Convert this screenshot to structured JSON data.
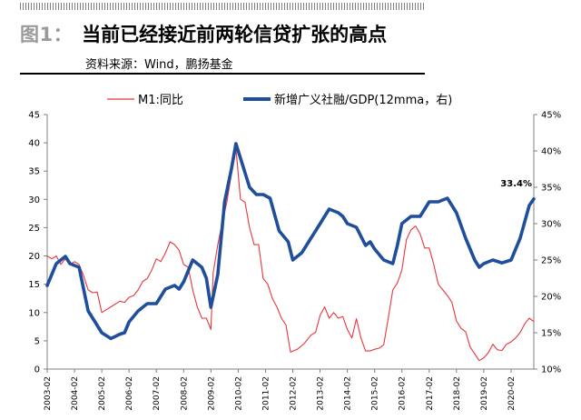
{
  "header": {
    "figure_number": "图1：",
    "title": "当前已经接近前两轮信贷扩张的高点",
    "source": "资料来源：Wind，鹏扬基金"
  },
  "chart_data": {
    "type": "line",
    "legend": {
      "placement": "top",
      "entries": [
        "M1:同比",
        "新增广义社融/GDP(12mma，右)"
      ]
    },
    "x_tick_labels": [
      "2003-02",
      "2004-02",
      "2005-02",
      "2006-02",
      "2007-02",
      "2008-02",
      "2009-02",
      "2010-02",
      "2011-02",
      "2012-02",
      "2013-02",
      "2014-02",
      "2015-02",
      "2016-02",
      "2017-02",
      "2018-02",
      "2019-02",
      "2020-02"
    ],
    "x_range": [
      "2003-02",
      "2020-12"
    ],
    "y_left": {
      "ticks": [
        "0",
        "5",
        "10",
        "15",
        "20",
        "25",
        "30",
        "35",
        "40",
        "45"
      ],
      "range": [
        0,
        45
      ]
    },
    "y_right": {
      "ticks": [
        "10%",
        "15%",
        "20%",
        "25%",
        "30%",
        "35%",
        "40%",
        "45%"
      ],
      "range": [
        10,
        45
      ]
    },
    "grid": false,
    "annotation": {
      "text": "33.4%",
      "x": "2020-12",
      "y": 33.4
    },
    "colors": {
      "m1": "#e8363c",
      "tsf": "#1f4e9c"
    },
    "series": [
      {
        "name": "M1:同比",
        "axis": "left",
        "color": "#e8363c",
        "points": [
          [
            "2003-02",
            20
          ],
          [
            "2003-04",
            19.5
          ],
          [
            "2003-06",
            20
          ],
          [
            "2003-08",
            18.5
          ],
          [
            "2003-10",
            19.5
          ],
          [
            "2003-12",
            18.5
          ],
          [
            "2004-02",
            19
          ],
          [
            "2004-04",
            18.5
          ],
          [
            "2004-06",
            16.5
          ],
          [
            "2004-08",
            14
          ],
          [
            "2004-10",
            13.5
          ],
          [
            "2004-12",
            13.6
          ],
          [
            "2005-02",
            10
          ],
          [
            "2005-04",
            10.5
          ],
          [
            "2005-06",
            11
          ],
          [
            "2005-08",
            11.5
          ],
          [
            "2005-10",
            12
          ],
          [
            "2005-12",
            11.8
          ],
          [
            "2006-02",
            12.7
          ],
          [
            "2006-04",
            13
          ],
          [
            "2006-06",
            14
          ],
          [
            "2006-08",
            15.5
          ],
          [
            "2006-10",
            16
          ],
          [
            "2006-12",
            17.5
          ],
          [
            "2007-02",
            19.5
          ],
          [
            "2007-04",
            19
          ],
          [
            "2007-06",
            20.5
          ],
          [
            "2007-08",
            22.5
          ],
          [
            "2007-10",
            22
          ],
          [
            "2007-12",
            21
          ],
          [
            "2008-02",
            18.5
          ],
          [
            "2008-04",
            18
          ],
          [
            "2008-06",
            14
          ],
          [
            "2008-08",
            11
          ],
          [
            "2008-10",
            9
          ],
          [
            "2008-12",
            9
          ],
          [
            "2009-02",
            7
          ],
          [
            "2009-03",
            17
          ],
          [
            "2009-05",
            22
          ],
          [
            "2009-07",
            26
          ],
          [
            "2009-09",
            29.5
          ],
          [
            "2009-11",
            34.5
          ],
          [
            "2010-01",
            39
          ],
          [
            "2010-03",
            30
          ],
          [
            "2010-05",
            29.5
          ],
          [
            "2010-07",
            25
          ],
          [
            "2010-09",
            22
          ],
          [
            "2010-11",
            22
          ],
          [
            "2011-01",
            16
          ],
          [
            "2011-03",
            15
          ],
          [
            "2011-05",
            12.5
          ],
          [
            "2011-07",
            11
          ],
          [
            "2011-09",
            9
          ],
          [
            "2011-11",
            7.8
          ],
          [
            "2012-01",
            3
          ],
          [
            "2012-04",
            3.5
          ],
          [
            "2012-07",
            4.5
          ],
          [
            "2012-10",
            6
          ],
          [
            "2012-12",
            6.5
          ],
          [
            "2013-02",
            9.5
          ],
          [
            "2013-04",
            11
          ],
          [
            "2013-06",
            9
          ],
          [
            "2013-08",
            10
          ],
          [
            "2013-10",
            9
          ],
          [
            "2013-12",
            9.3
          ],
          [
            "2014-02",
            7
          ],
          [
            "2014-04",
            5.5
          ],
          [
            "2014-06",
            8.9
          ],
          [
            "2014-08",
            5.5
          ],
          [
            "2014-10",
            3.2
          ],
          [
            "2014-12",
            3.2
          ],
          [
            "2015-02",
            3.5
          ],
          [
            "2015-04",
            3.7
          ],
          [
            "2015-06",
            4.3
          ],
          [
            "2015-08",
            9
          ],
          [
            "2015-10",
            14
          ],
          [
            "2015-12",
            15.2
          ],
          [
            "2016-02",
            17.5
          ],
          [
            "2016-04",
            22.9
          ],
          [
            "2016-06",
            24.6
          ],
          [
            "2016-08",
            25.3
          ],
          [
            "2016-10",
            23.9
          ],
          [
            "2016-12",
            21.4
          ],
          [
            "2017-02",
            21.4
          ],
          [
            "2017-04",
            18.5
          ],
          [
            "2017-06",
            15
          ],
          [
            "2017-08",
            14
          ],
          [
            "2017-10",
            13
          ],
          [
            "2017-12",
            11.8
          ],
          [
            "2018-02",
            8.5
          ],
          [
            "2018-04",
            7.2
          ],
          [
            "2018-06",
            6.6
          ],
          [
            "2018-08",
            3.9
          ],
          [
            "2018-10",
            2.7
          ],
          [
            "2018-12",
            1.5
          ],
          [
            "2019-02",
            2
          ],
          [
            "2019-04",
            2.9
          ],
          [
            "2019-06",
            4.4
          ],
          [
            "2019-08",
            3.4
          ],
          [
            "2019-10",
            3.3
          ],
          [
            "2019-12",
            4.4
          ],
          [
            "2020-02",
            4.8
          ],
          [
            "2020-04",
            5.5
          ],
          [
            "2020-06",
            6.5
          ],
          [
            "2020-08",
            8
          ],
          [
            "2020-10",
            9
          ],
          [
            "2020-12",
            8.4
          ]
        ]
      },
      {
        "name": "新增广义社融/GDP(12mma，右)",
        "axis": "right",
        "color": "#1f4e9c",
        "points": [
          [
            "2003-02",
            21.5
          ],
          [
            "2003-06",
            24.5
          ],
          [
            "2003-10",
            25.5
          ],
          [
            "2003-12",
            24.5
          ],
          [
            "2004-04",
            24
          ],
          [
            "2004-08",
            18
          ],
          [
            "2004-12",
            16
          ],
          [
            "2005-02",
            15
          ],
          [
            "2005-06",
            14.2
          ],
          [
            "2005-10",
            14.8
          ],
          [
            "2005-12",
            15
          ],
          [
            "2006-02",
            16.5
          ],
          [
            "2006-06",
            18
          ],
          [
            "2006-10",
            19
          ],
          [
            "2006-12",
            19
          ],
          [
            "2007-02",
            19
          ],
          [
            "2007-06",
            21
          ],
          [
            "2007-10",
            21.5
          ],
          [
            "2007-12",
            21
          ],
          [
            "2008-02",
            22
          ],
          [
            "2008-06",
            25
          ],
          [
            "2008-10",
            24
          ],
          [
            "2008-12",
            22.5
          ],
          [
            "2009-02",
            18.5
          ],
          [
            "2009-05",
            23
          ],
          [
            "2009-08",
            33
          ],
          [
            "2009-11",
            37.5
          ],
          [
            "2010-01",
            41
          ],
          [
            "2010-04",
            38
          ],
          [
            "2010-07",
            35
          ],
          [
            "2010-10",
            34
          ],
          [
            "2011-01",
            34
          ],
          [
            "2011-04",
            33.5
          ],
          [
            "2011-08",
            29
          ],
          [
            "2011-12",
            27.5
          ],
          [
            "2012-02",
            25
          ],
          [
            "2012-06",
            26
          ],
          [
            "2012-10",
            28
          ],
          [
            "2012-12",
            29
          ],
          [
            "2013-02",
            30
          ],
          [
            "2013-06",
            32
          ],
          [
            "2013-10",
            31.5
          ],
          [
            "2013-12",
            31
          ],
          [
            "2014-02",
            30
          ],
          [
            "2014-06",
            29.5
          ],
          [
            "2014-10",
            27
          ],
          [
            "2014-12",
            27.5
          ],
          [
            "2015-02",
            26.5
          ],
          [
            "2015-06",
            25
          ],
          [
            "2015-10",
            24.5
          ],
          [
            "2015-12",
            27
          ],
          [
            "2016-02",
            30
          ],
          [
            "2016-06",
            31
          ],
          [
            "2016-10",
            31
          ],
          [
            "2016-12",
            32
          ],
          [
            "2017-02",
            33
          ],
          [
            "2017-06",
            33
          ],
          [
            "2017-10",
            33.5
          ],
          [
            "2017-12",
            32.5
          ],
          [
            "2018-02",
            31.5
          ],
          [
            "2018-06",
            28
          ],
          [
            "2018-10",
            25
          ],
          [
            "2018-12",
            24
          ],
          [
            "2019-02",
            24.5
          ],
          [
            "2019-06",
            25
          ],
          [
            "2019-10",
            24.6
          ],
          [
            "2019-12",
            24.8
          ],
          [
            "2020-02",
            25
          ],
          [
            "2020-06",
            28
          ],
          [
            "2020-10",
            32.5
          ],
          [
            "2020-12",
            33.4
          ]
        ]
      }
    ]
  }
}
